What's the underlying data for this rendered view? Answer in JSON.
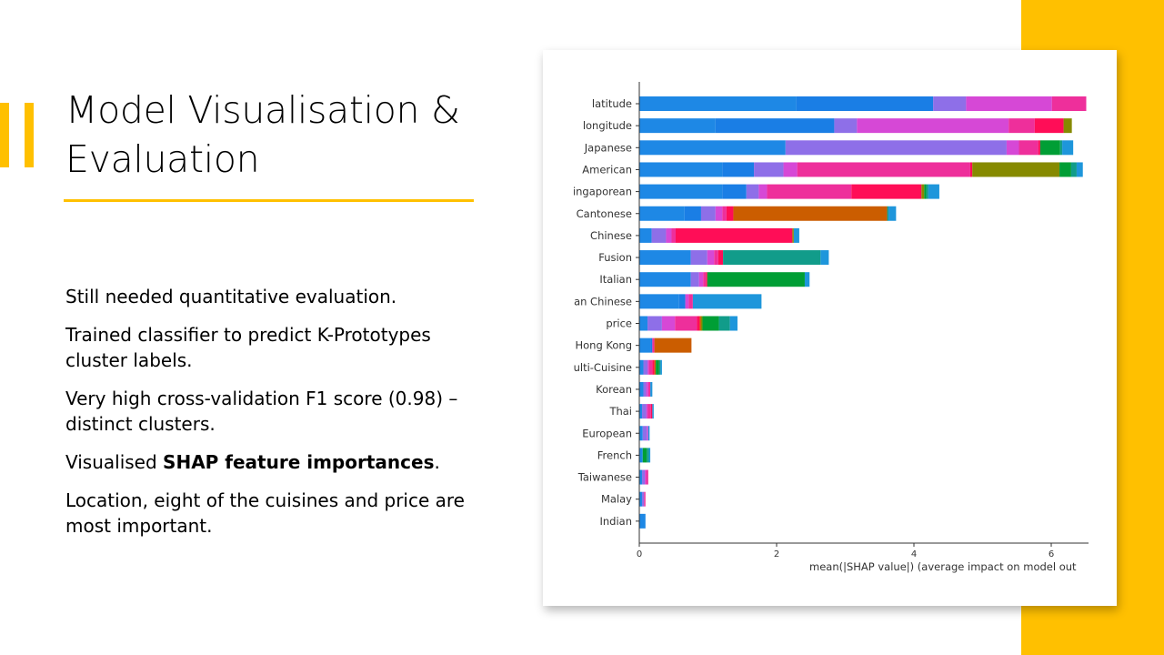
{
  "slide": {
    "title": "Model Visualisation & Evaluation",
    "bullets": [
      {
        "text": "Still needed quantitative evaluation."
      },
      {
        "text": "Trained classifier to predict K-Prototypes cluster labels."
      },
      {
        "text": "Very high cross-validation F1 score (0.98) – distinct clusters."
      },
      {
        "pre": "Visualised ",
        "bold": "SHAP feature importances",
        "post": "."
      },
      {
        "text": "Location, eight of the cuisines and price are most important."
      }
    ],
    "colors": {
      "accent": "#FFC000"
    }
  },
  "chart_data": {
    "type": "bar",
    "orientation": "horizontal",
    "stacked": true,
    "xlabel": "mean(|SHAP value|) (average impact on model out",
    "xlim": [
      0,
      6.5
    ],
    "xticks": [
      0,
      2,
      4,
      6
    ],
    "categories": [
      "latitude",
      "longitude",
      "Japanese",
      "American",
      "ingaporean",
      "Cantonese",
      "Chinese",
      "Fusion",
      "Italian",
      "an Chinese",
      "price",
      "Hong Kong",
      "ulti-Cuisine",
      "Korean",
      "Thai",
      "European",
      "French",
      "Taiwanese",
      "Malay",
      "Indian"
    ],
    "series": [
      {
        "color": "#1E88E5",
        "values": [
          2.29,
          1.11,
          2.13,
          1.21,
          1.21,
          0.66,
          0.18,
          0.75,
          0.75,
          0.58,
          0.12,
          0.16,
          0.06,
          0.06,
          0.04,
          0.05,
          0.05,
          0.04,
          0.04,
          0.09
        ]
      },
      {
        "color": "#1A7EE5",
        "values": [
          1.99,
          1.73,
          0.0,
          0.46,
          0.35,
          0.24,
          0.0,
          0.0,
          0.0,
          0.09,
          0.0,
          0.03,
          0.0,
          0.0,
          0.0,
          0.0,
          0.0,
          0.0,
          0.0,
          0.0
        ]
      },
      {
        "color": "#8E6FE8",
        "values": [
          0.48,
          0.33,
          3.22,
          0.43,
          0.18,
          0.21,
          0.21,
          0.24,
          0.12,
          0.0,
          0.21,
          0.0,
          0.06,
          0.04,
          0.06,
          0.06,
          0.0,
          0.04,
          0.03,
          0.0
        ]
      },
      {
        "color": "#D648D6",
        "values": [
          1.25,
          2.21,
          0.18,
          0.2,
          0.12,
          0.1,
          0.08,
          0.1,
          0.06,
          0.05,
          0.19,
          0.0,
          0.02,
          0.03,
          0.02,
          0.02,
          0.0,
          0.02,
          0.0,
          0.0
        ]
      },
      {
        "color": "#EE2F9B",
        "values": [
          0.5,
          0.38,
          0.28,
          2.52,
          1.23,
          0.06,
          0.06,
          0.06,
          0.04,
          0.06,
          0.32,
          0.03,
          0.05,
          0.03,
          0.05,
          0.0,
          0.0,
          0.03,
          0.02,
          0.0
        ]
      },
      {
        "color": "#FF0D57",
        "values": [
          0.0,
          0.42,
          0.03,
          0.03,
          1.02,
          0.1,
          1.7,
          0.07,
          0.02,
          0.0,
          0.04,
          0.0,
          0.03,
          0.0,
          0.02,
          0.0,
          0.0,
          0.0,
          0.0,
          0.0
        ]
      },
      {
        "color": "#CB5D00",
        "values": [
          0.0,
          0.0,
          0.0,
          0.0,
          0.0,
          2.24,
          0.0,
          0.0,
          0.0,
          0.0,
          0.02,
          0.54,
          0.02,
          0.0,
          0.0,
          0.0,
          0.0,
          0.0,
          0.0,
          0.0
        ]
      },
      {
        "color": "#868A00",
        "values": [
          0.0,
          0.12,
          0.0,
          1.27,
          0.04,
          0.0,
          0.02,
          0.0,
          0.0,
          0.0,
          0.02,
          0.0,
          0.0,
          0.0,
          0.0,
          0.0,
          0.0,
          0.0,
          0.0,
          0.0
        ]
      },
      {
        "color": "#009E35",
        "values": [
          0.0,
          0.0,
          0.29,
          0.17,
          0.03,
          0.0,
          0.0,
          0.0,
          1.42,
          0.0,
          0.24,
          0.0,
          0.05,
          0.0,
          0.0,
          0.0,
          0.06,
          0.0,
          0.0,
          0.0
        ]
      },
      {
        "color": "#119C8A",
        "values": [
          0.0,
          0.0,
          0.03,
          0.08,
          0.03,
          0.02,
          0.0,
          1.42,
          0.0,
          0.0,
          0.16,
          0.0,
          0.02,
          0.0,
          0.0,
          0.0,
          0.03,
          0.0,
          0.0,
          0.0
        ]
      },
      {
        "color": "#1E96DB",
        "values": [
          0.0,
          0.0,
          0.16,
          0.09,
          0.16,
          0.11,
          0.08,
          0.12,
          0.07,
          1.0,
          0.11,
          0.0,
          0.02,
          0.03,
          0.02,
          0.02,
          0.02,
          0.0,
          0.0,
          0.0
        ]
      }
    ]
  }
}
